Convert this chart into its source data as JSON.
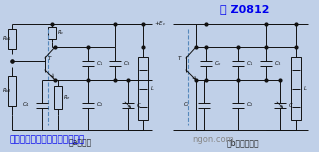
{
  "title": "图 Z0812",
  "title_color": "#0000EE",
  "title_fontsize": 8,
  "bg_color": "#C0D0E8",
  "subtitle": "西勒（并联型电容三点式振荡器",
  "subtitle_color": "#0000EE",
  "subtitle_fontsize": 6.5,
  "watermark": "ngon.com",
  "watermark_color": "#888888",
  "label_a": "（a）电路",
  "label_b": "（b）交流通路",
  "label_color": "#222222",
  "label_fontsize": 5.5,
  "line_color": "#111111",
  "dashed_color": "#5588BB"
}
